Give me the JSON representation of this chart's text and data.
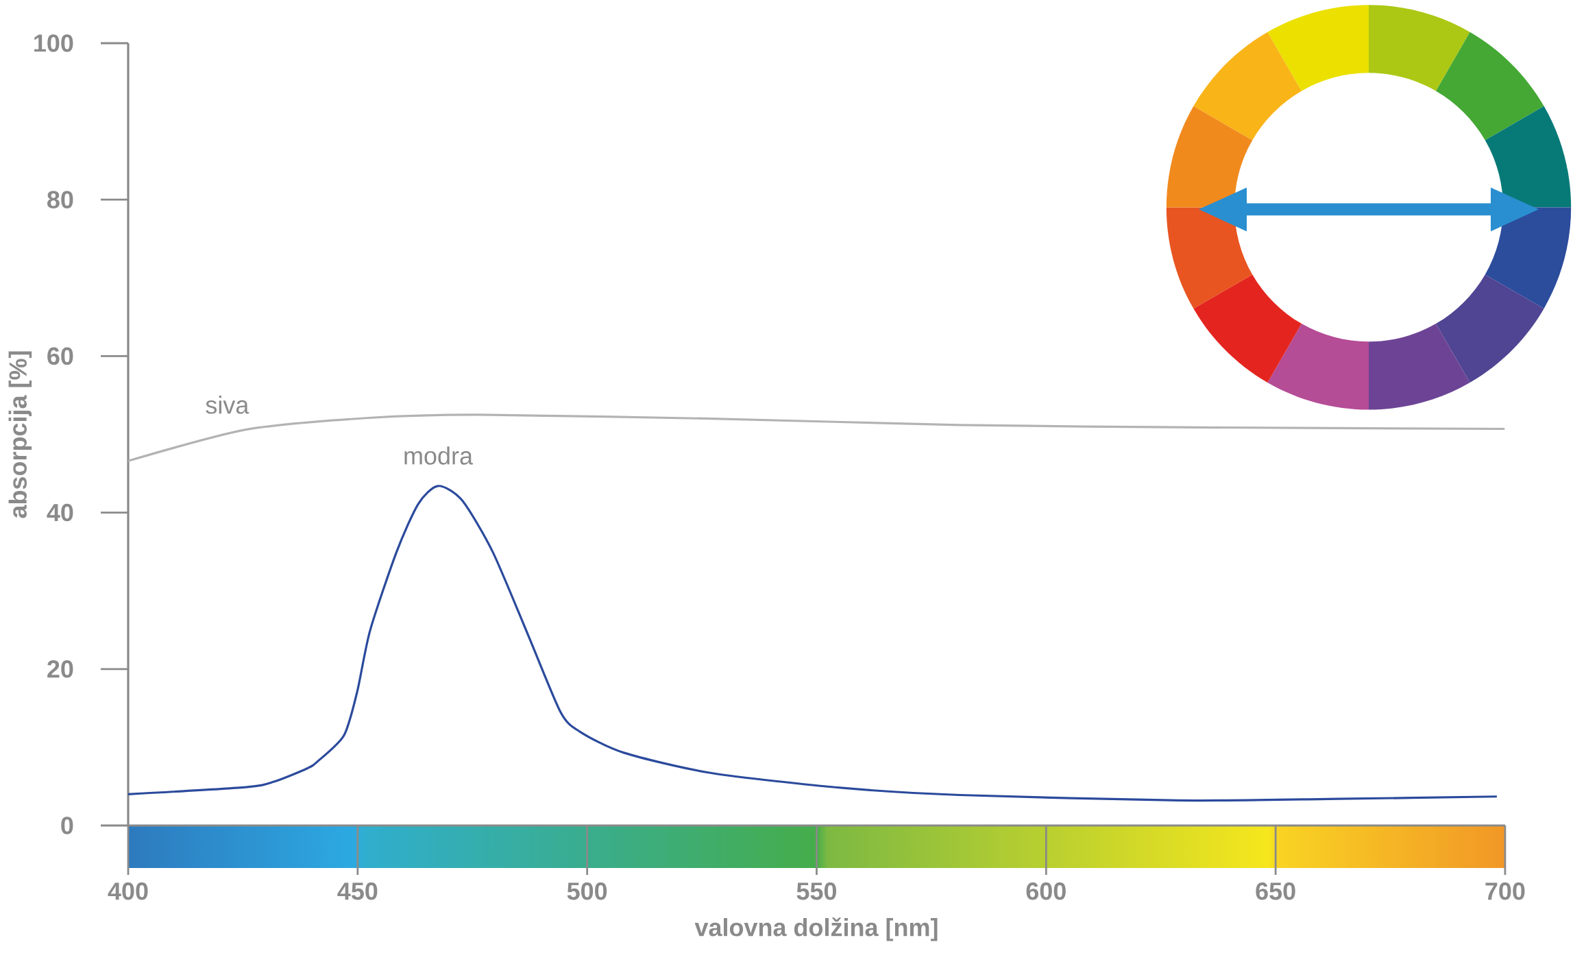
{
  "chart_data": {
    "type": "line",
    "xlabel": "valovna dolžina [nm]",
    "ylabel": "absorpcija [%]",
    "xlim": [
      400,
      700
    ],
    "ylim": [
      0,
      100
    ],
    "xticks": [
      400,
      450,
      500,
      550,
      600,
      650,
      700
    ],
    "yticks": [
      0,
      20,
      40,
      60,
      80,
      100
    ],
    "series": [
      {
        "name": "siva",
        "color": "#b3b3b3",
        "x": [
          400,
          425.6,
          452.4,
          476.5,
          527.1,
          581,
          628.8,
          699.9
        ],
        "values": [
          46.6,
          50.6,
          52.1,
          52.5,
          52.0,
          51.2,
          50.9,
          50.7
        ]
      },
      {
        "name": "modra",
        "color": "#2b4a9c",
        "x": [
          400,
          425.6,
          431.8,
          439,
          441.3,
          447,
          449.9,
          452.7,
          458.5,
          463.2,
          467.5,
          472.7,
          479.4,
          487.1,
          494.2,
          498.4,
          508,
          527.1,
          555.6,
          581.1,
          628.8,
          663.5,
          698.2
        ],
        "values": [
          4.0,
          4.9,
          5.6,
          7.3,
          8.2,
          11.5,
          17.1,
          24.9,
          35.0,
          41.1,
          43.4,
          41.6,
          35.0,
          24.4,
          14.5,
          12.0,
          9.3,
          6.7,
          4.8,
          3.9,
          3.2,
          3.4,
          3.7
        ]
      }
    ]
  }
}
